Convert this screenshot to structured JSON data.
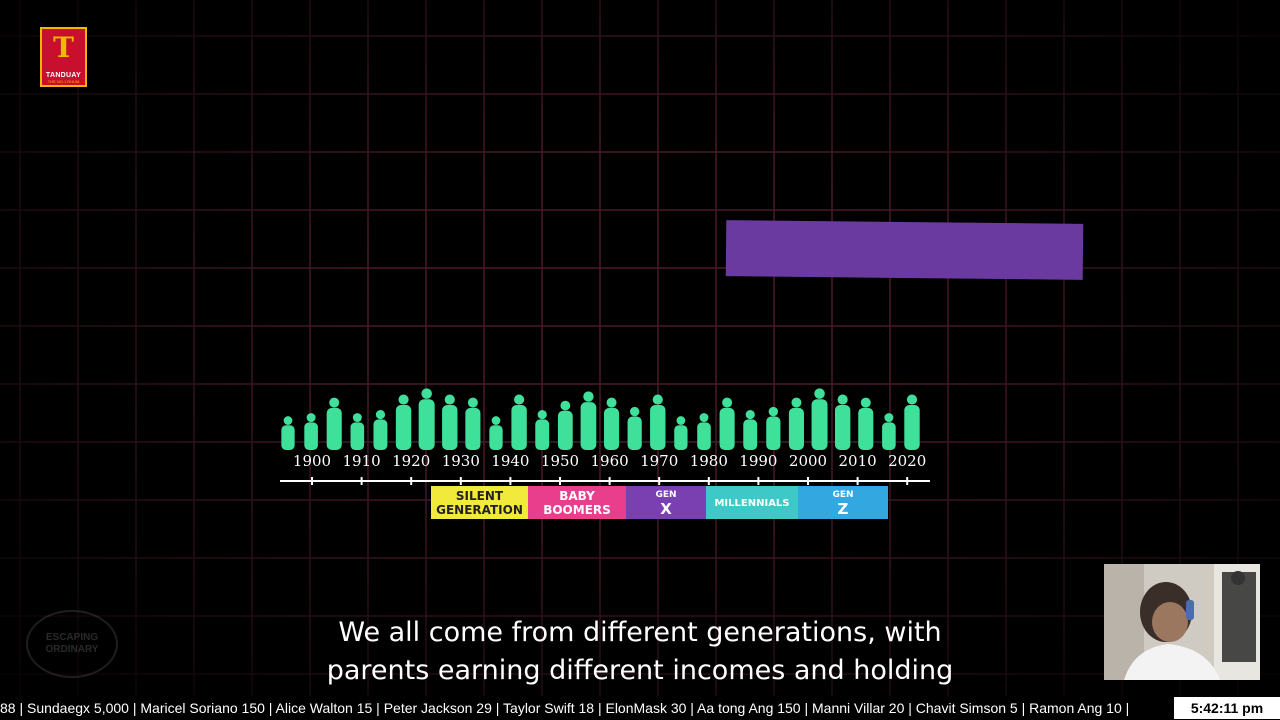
{
  "logo": {
    "brand": "TANDUAY",
    "mark": "T",
    "sub": "THE NO.1 RHUM"
  },
  "timeline": {
    "decades": [
      "1900",
      "1910",
      "1920",
      "1930",
      "1940",
      "1950",
      "1960",
      "1970",
      "1980",
      "1990",
      "2000",
      "2010",
      "2020"
    ],
    "generations": [
      {
        "line1": "SILENT",
        "line2": "GENERATION",
        "color": "#f2ea3a",
        "text_color": "#222222"
      },
      {
        "line1": "BABY",
        "line2": "BOOMERS",
        "color": "#e83e8c",
        "text_color": "#ffffff"
      },
      {
        "line1": "GEN",
        "line2": "X",
        "color": "#7a3fb0",
        "text_color": "#ffffff"
      },
      {
        "line1": "MILLENNIALS",
        "line2": "",
        "color": "#3ec8c8",
        "text_color": "#ffffff"
      },
      {
        "line1": "GEN",
        "line2": "Z",
        "color": "#33a8e0",
        "text_color": "#ffffff"
      }
    ],
    "people_color": "#3fe09a"
  },
  "highlight_bar_color": "#6a3aa0",
  "subtitles": {
    "line1": "We all come from different generations, with",
    "line2": "parents earning different incomes and holding"
  },
  "watermark": {
    "line1": "ESCAPING",
    "line2": "ORDINARY"
  },
  "ticker": {
    "text": "88 | Sundaegx 5,000 | Maricel Soriano 150 | Alice Walton 15 | Peter Jackson 29 | Taylor Swift 18 | ElonMask 30 | Aa tong Ang 150 | Manni Villar 20 | Chavit Simson 5 | Ramon Ang 10 |",
    "clock": "5:42:11 pm"
  },
  "colors": {
    "grid": "#4a1a2c",
    "background": "#000000"
  }
}
